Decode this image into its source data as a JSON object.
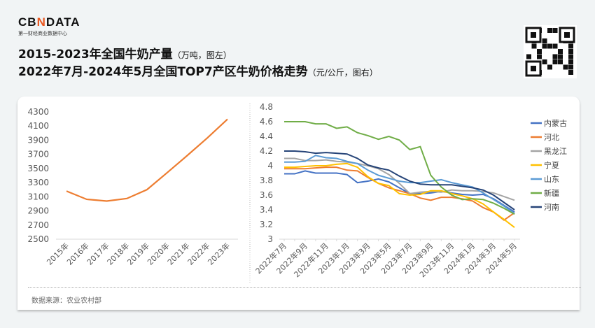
{
  "header": {
    "brand": "CBNDATA",
    "brand_sub": "第一财经商业数据中心",
    "title_line1": "2015-2023年全国牛奶产量",
    "title_line1_unit": "（万吨，图左）",
    "title_line2": "2022年7月-2024年5月全国TOP7产区牛奶价格走势",
    "title_line2_unit": "（元/公斤，图右）"
  },
  "footer": {
    "source": "数据来源：农业农村部"
  },
  "chart_data": [
    {
      "type": "line",
      "categories": [
        "2015年",
        "2016年",
        "2017年",
        "2018年",
        "2019年",
        "2020年",
        "2021年",
        "2022年",
        "2023年"
      ],
      "values": [
        3180,
        3064,
        3039,
        3075,
        3201,
        3440,
        3683,
        3932,
        4197
      ],
      "ylim": [
        2500,
        4300
      ],
      "yticks": [
        2500,
        2700,
        2900,
        3100,
        3300,
        3500,
        3700,
        3900,
        4100,
        4300
      ],
      "color": "#ed7d31",
      "grid": false
    },
    {
      "type": "line",
      "categories": [
        "2022年7月",
        "2022年8月",
        "2022年9月",
        "2022年10月",
        "2022年11月",
        "2022年12月",
        "2023年1月",
        "2023年2月",
        "2023年3月",
        "2023年4月",
        "2023年5月",
        "2023年6月",
        "2023年7月",
        "2023年8月",
        "2023年9月",
        "2023年10月",
        "2023年11月",
        "2023年12月",
        "2024年1月",
        "2024年2月",
        "2024年3月",
        "2024年4月",
        "2024年5月"
      ],
      "tick_labels": [
        "2022年7月",
        "2022年9月",
        "2022年11月",
        "2023年1月",
        "2023年3月",
        "2023年5月",
        "2023年7月",
        "2023年9月",
        "2023年11月",
        "2024年1月",
        "2024年3月",
        "2024年5月"
      ],
      "ylim": [
        3,
        4.8
      ],
      "yticks": [
        "3",
        "3.2",
        "3.4",
        "3.6",
        "3.8",
        "4",
        "4.2",
        "4.4",
        "4.6",
        "4.8"
      ],
      "grid": false,
      "legend": "right",
      "series": [
        {
          "name": "内蒙古",
          "color": "#4472c4",
          "values": [
            3.89,
            3.89,
            3.93,
            3.9,
            3.9,
            3.9,
            3.88,
            3.77,
            3.79,
            3.82,
            3.78,
            3.7,
            3.62,
            3.62,
            3.63,
            3.65,
            3.63,
            3.61,
            3.6,
            3.61,
            3.55,
            3.46,
            3.37
          ]
        },
        {
          "name": "河北",
          "color": "#ed7d31",
          "values": [
            3.96,
            3.96,
            3.96,
            3.97,
            3.98,
            3.98,
            3.94,
            3.93,
            3.84,
            3.76,
            3.7,
            3.66,
            3.62,
            3.56,
            3.53,
            3.57,
            3.57,
            3.55,
            3.52,
            3.43,
            3.37,
            3.26,
            3.36
          ]
        },
        {
          "name": "黑龙江",
          "color": "#a5a5a5",
          "values": [
            4.1,
            4.1,
            4.07,
            4.07,
            4.08,
            4.06,
            4.05,
            4.03,
            4.0,
            3.96,
            3.88,
            3.76,
            3.62,
            3.64,
            3.65,
            3.64,
            3.67,
            3.66,
            3.66,
            3.65,
            3.63,
            3.58,
            3.53
          ]
        },
        {
          "name": "宁夏",
          "color": "#ffc000",
          "values": [
            3.98,
            3.98,
            3.99,
            4.0,
            4.0,
            4.02,
            4.03,
            3.98,
            3.85,
            3.76,
            3.73,
            3.62,
            3.6,
            3.61,
            3.66,
            3.66,
            3.62,
            3.59,
            3.55,
            3.48,
            3.37,
            3.27,
            3.16
          ]
        },
        {
          "name": "山东",
          "color": "#5b9bd5",
          "values": [
            4.05,
            4.05,
            4.06,
            4.14,
            4.11,
            4.1,
            4.06,
            4.03,
            3.94,
            3.87,
            3.83,
            3.79,
            3.77,
            3.77,
            3.79,
            3.81,
            3.77,
            3.74,
            3.71,
            3.63,
            3.54,
            3.45,
            3.35
          ]
        },
        {
          "name": "新疆",
          "color": "#70ad47",
          "values": [
            4.6,
            4.6,
            4.6,
            4.57,
            4.57,
            4.51,
            4.53,
            4.45,
            4.41,
            4.36,
            4.4,
            4.35,
            4.22,
            4.26,
            3.87,
            3.71,
            3.6,
            3.54,
            3.55,
            3.54,
            3.49,
            3.42,
            3.34
          ]
        },
        {
          "name": "河南",
          "color": "#264478",
          "values": [
            4.2,
            4.2,
            4.19,
            4.17,
            4.18,
            4.17,
            4.16,
            4.1,
            4.01,
            3.97,
            3.94,
            3.86,
            3.79,
            3.75,
            3.74,
            3.74,
            3.74,
            3.72,
            3.7,
            3.67,
            3.6,
            3.5,
            3.4
          ]
        }
      ]
    }
  ]
}
